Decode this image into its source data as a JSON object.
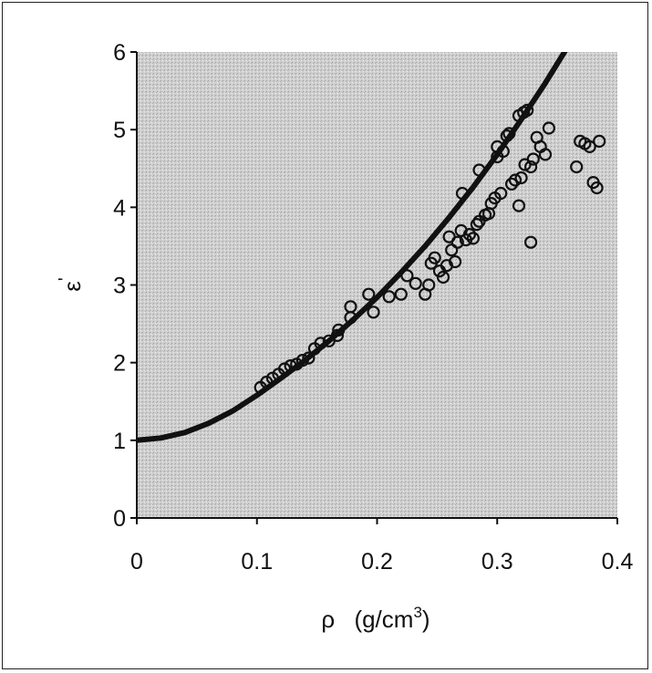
{
  "chart_data": {
    "type": "scatter",
    "xlabel_symbol": "ρ",
    "xlabel_unit_base": "(g/cm",
    "xlabel_unit_exp": "3",
    "xlabel_unit_close": ")",
    "ylabel_base": "ε",
    "ylabel_prime": "'",
    "xlim": [
      0,
      0.4
    ],
    "ylim": [
      0,
      6
    ],
    "x_ticks": [
      0,
      0.1,
      0.2,
      0.3,
      0.4
    ],
    "x_tick_labels": [
      "0",
      "0.1",
      "0.2",
      "0.3",
      "0.4"
    ],
    "y_ticks": [
      0,
      1,
      2,
      3,
      4,
      5,
      6
    ],
    "y_tick_labels": [
      "0",
      "1",
      "2",
      "3",
      "4",
      "5",
      "6"
    ],
    "grid": false,
    "plot_background": "#c8c8c8",
    "series": [
      {
        "kind": "scatter",
        "marker": "open-circle",
        "color": "#111111",
        "points": [
          [
            0.103,
            1.68
          ],
          [
            0.108,
            1.75
          ],
          [
            0.113,
            1.8
          ],
          [
            0.118,
            1.85
          ],
          [
            0.123,
            1.92
          ],
          [
            0.128,
            1.96
          ],
          [
            0.133,
            1.98
          ],
          [
            0.138,
            2.03
          ],
          [
            0.143,
            2.06
          ],
          [
            0.148,
            2.18
          ],
          [
            0.153,
            2.25
          ],
          [
            0.16,
            2.28
          ],
          [
            0.167,
            2.35
          ],
          [
            0.168,
            2.42
          ],
          [
            0.178,
            2.58
          ],
          [
            0.178,
            2.72
          ],
          [
            0.193,
            2.88
          ],
          [
            0.197,
            2.65
          ],
          [
            0.21,
            2.85
          ],
          [
            0.22,
            2.88
          ],
          [
            0.225,
            3.12
          ],
          [
            0.232,
            3.02
          ],
          [
            0.24,
            2.88
          ],
          [
            0.243,
            3.0
          ],
          [
            0.245,
            3.28
          ],
          [
            0.248,
            3.35
          ],
          [
            0.252,
            3.18
          ],
          [
            0.255,
            3.1
          ],
          [
            0.258,
            3.25
          ],
          [
            0.26,
            3.62
          ],
          [
            0.262,
            3.45
          ],
          [
            0.265,
            3.3
          ],
          [
            0.267,
            3.55
          ],
          [
            0.27,
            3.7
          ],
          [
            0.271,
            4.18
          ],
          [
            0.274,
            3.58
          ],
          [
            0.277,
            3.65
          ],
          [
            0.28,
            3.6
          ],
          [
            0.283,
            3.78
          ],
          [
            0.285,
            3.82
          ],
          [
            0.285,
            4.48
          ],
          [
            0.29,
            3.9
          ],
          [
            0.293,
            3.92
          ],
          [
            0.295,
            4.05
          ],
          [
            0.298,
            4.12
          ],
          [
            0.3,
            4.65
          ],
          [
            0.3,
            4.78
          ],
          [
            0.303,
            4.18
          ],
          [
            0.305,
            4.72
          ],
          [
            0.308,
            4.92
          ],
          [
            0.31,
            4.95
          ],
          [
            0.312,
            4.3
          ],
          [
            0.315,
            4.35
          ],
          [
            0.318,
            4.02
          ],
          [
            0.318,
            5.18
          ],
          [
            0.32,
            4.38
          ],
          [
            0.322,
            5.22
          ],
          [
            0.323,
            4.55
          ],
          [
            0.325,
            5.25
          ],
          [
            0.328,
            4.52
          ],
          [
            0.328,
            3.55
          ],
          [
            0.33,
            4.62
          ],
          [
            0.333,
            4.9
          ],
          [
            0.336,
            4.78
          ],
          [
            0.34,
            4.68
          ],
          [
            0.343,
            5.02
          ],
          [
            0.366,
            4.52
          ],
          [
            0.369,
            4.85
          ],
          [
            0.373,
            4.82
          ],
          [
            0.377,
            4.78
          ],
          [
            0.38,
            4.32
          ],
          [
            0.383,
            4.25
          ],
          [
            0.385,
            4.85
          ]
        ]
      },
      {
        "kind": "line",
        "color": "#111111",
        "points": [
          [
            0.0,
            1.0
          ],
          [
            0.02,
            1.03
          ],
          [
            0.04,
            1.1
          ],
          [
            0.06,
            1.22
          ],
          [
            0.08,
            1.38
          ],
          [
            0.1,
            1.58
          ],
          [
            0.12,
            1.8
          ],
          [
            0.14,
            2.03
          ],
          [
            0.16,
            2.28
          ],
          [
            0.18,
            2.55
          ],
          [
            0.2,
            2.84
          ],
          [
            0.22,
            3.16
          ],
          [
            0.24,
            3.5
          ],
          [
            0.26,
            3.87
          ],
          [
            0.28,
            4.26
          ],
          [
            0.3,
            4.68
          ],
          [
            0.32,
            5.13
          ],
          [
            0.34,
            5.6
          ],
          [
            0.36,
            6.1
          ],
          [
            0.38,
            6.62
          ]
        ]
      }
    ]
  }
}
